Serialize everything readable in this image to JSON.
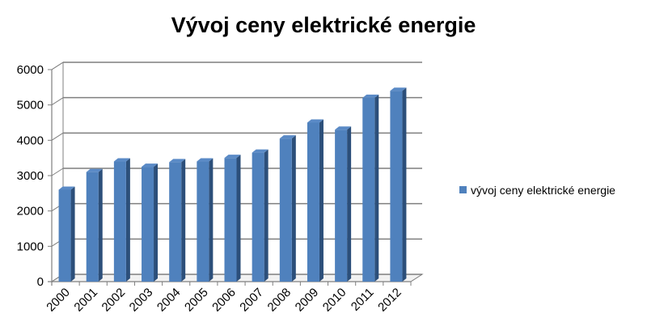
{
  "chart_data": {
    "type": "bar",
    "title": "Vývoj ceny elektrické energie",
    "categories": [
      "2000",
      "2001",
      "2002",
      "2003",
      "2004",
      "2005",
      "2006",
      "2007",
      "2008",
      "2009",
      "2010",
      "2011",
      "2012"
    ],
    "series": [
      {
        "name": "vývoj ceny elektrické energie",
        "values": [
          2600,
          3100,
          3400,
          3250,
          3380,
          3400,
          3500,
          3650,
          4050,
          4500,
          4300,
          5200,
          5400
        ],
        "color": "#4f81bd"
      }
    ],
    "y_ticks": [
      "0",
      "1000",
      "2000",
      "3000",
      "4000",
      "5000",
      "6000"
    ],
    "ylim": [
      0,
      6000
    ],
    "grid": true,
    "three_d": true,
    "legend_position": "right"
  }
}
